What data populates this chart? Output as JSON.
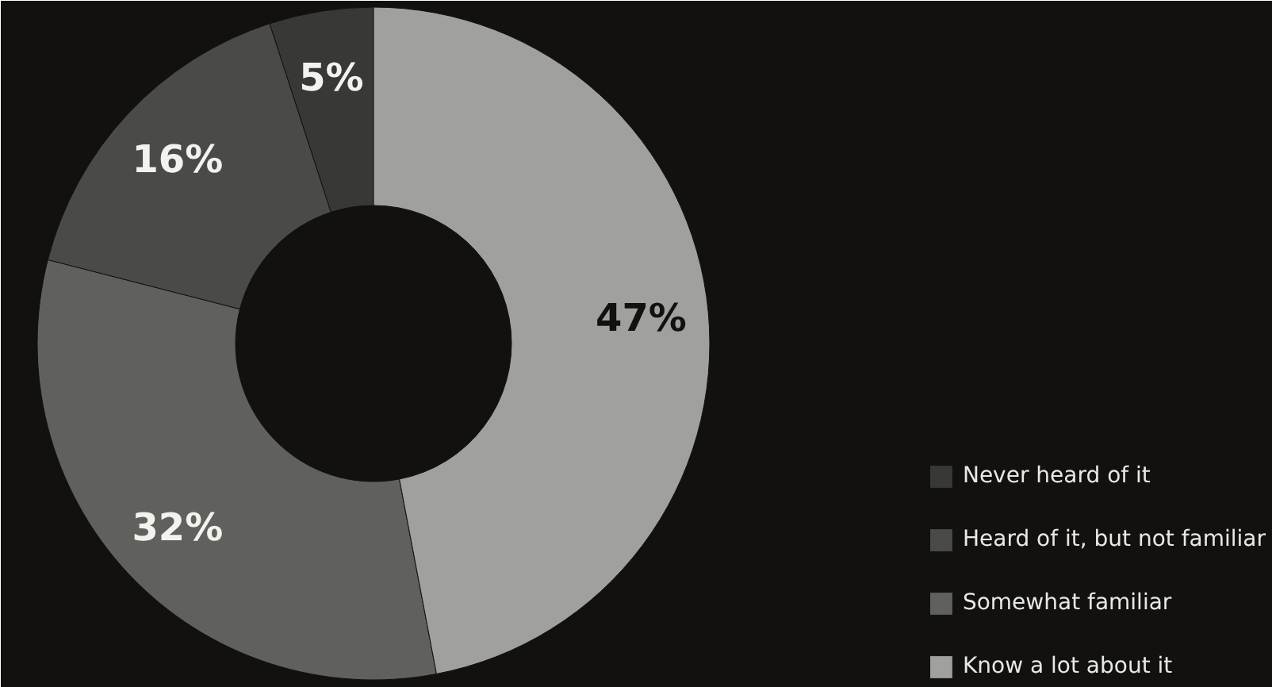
{
  "chart_data": {
    "type": "donut",
    "categories": [
      "Never heard of it",
      "Heard of it, but not familiar",
      "Somewhat familiar",
      "Know a lot about it"
    ],
    "values": [
      5,
      16,
      32,
      47
    ],
    "colors": [
      "#383835",
      "#4a4a47",
      "#60605c",
      "#a0a09c"
    ],
    "value_labels": [
      "5%",
      "16%",
      "32%",
      "47%"
    ],
    "legend": "bottom right"
  }
}
